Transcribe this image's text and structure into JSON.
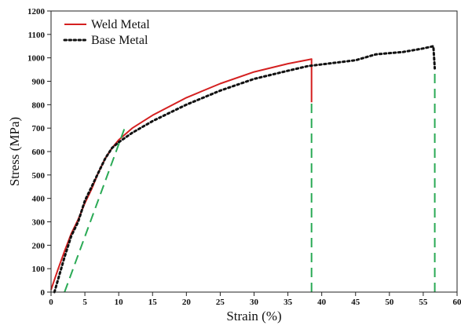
{
  "chart_data": {
    "type": "line",
    "title": "",
    "xlabel": "Strain (%)",
    "ylabel": "Stress (MPa)",
    "xlim": [
      0,
      60
    ],
    "ylim": [
      0,
      1200
    ],
    "x_ticks": [
      0,
      5,
      10,
      15,
      20,
      25,
      30,
      35,
      40,
      45,
      50,
      55,
      60
    ],
    "y_ticks": [
      0,
      100,
      200,
      300,
      400,
      500,
      600,
      700,
      800,
      900,
      1000,
      1100,
      1200
    ],
    "grid": false,
    "legend_position": "top-left",
    "series": [
      {
        "name": "Weld Metal",
        "style": "solid",
        "color": "#d42020",
        "x": [
          0,
          1,
          2,
          3,
          4,
          5,
          6,
          7,
          8,
          9,
          10,
          12,
          15,
          20,
          25,
          30,
          35,
          38,
          38.5,
          38.5
        ],
        "y": [
          10,
          95,
          175,
          250,
          310,
          380,
          440,
          510,
          570,
          615,
          650,
          700,
          755,
          830,
          890,
          940,
          975,
          992,
          995,
          810
        ]
      },
      {
        "name": "Base Metal",
        "style": "dotted",
        "color": "#111111",
        "x": [
          0.5,
          1,
          2,
          3,
          4,
          5,
          6,
          7,
          8,
          9,
          10,
          12,
          15,
          20,
          25,
          30,
          35,
          38,
          40,
          45,
          48,
          52,
          55,
          56.5,
          56.7
        ],
        "y": [
          0,
          50,
          150,
          240,
          300,
          390,
          450,
          510,
          570,
          615,
          640,
          680,
          730,
          800,
          860,
          910,
          945,
          965,
          972,
          990,
          1015,
          1025,
          1040,
          1050,
          955
        ]
      },
      {
        "name": "",
        "style": "dashed",
        "color": "#2aaa55",
        "x": [
          2,
          11
        ],
        "y": [
          0,
          710
        ]
      },
      {
        "name": "",
        "style": "dashed",
        "color": "#2aaa55",
        "x": [
          38.5,
          38.5
        ],
        "y": [
          0,
          810
        ]
      },
      {
        "name": "",
        "style": "dashed",
        "color": "#2aaa55",
        "x": [
          56.7,
          56.7
        ],
        "y": [
          0,
          955
        ]
      }
    ]
  }
}
